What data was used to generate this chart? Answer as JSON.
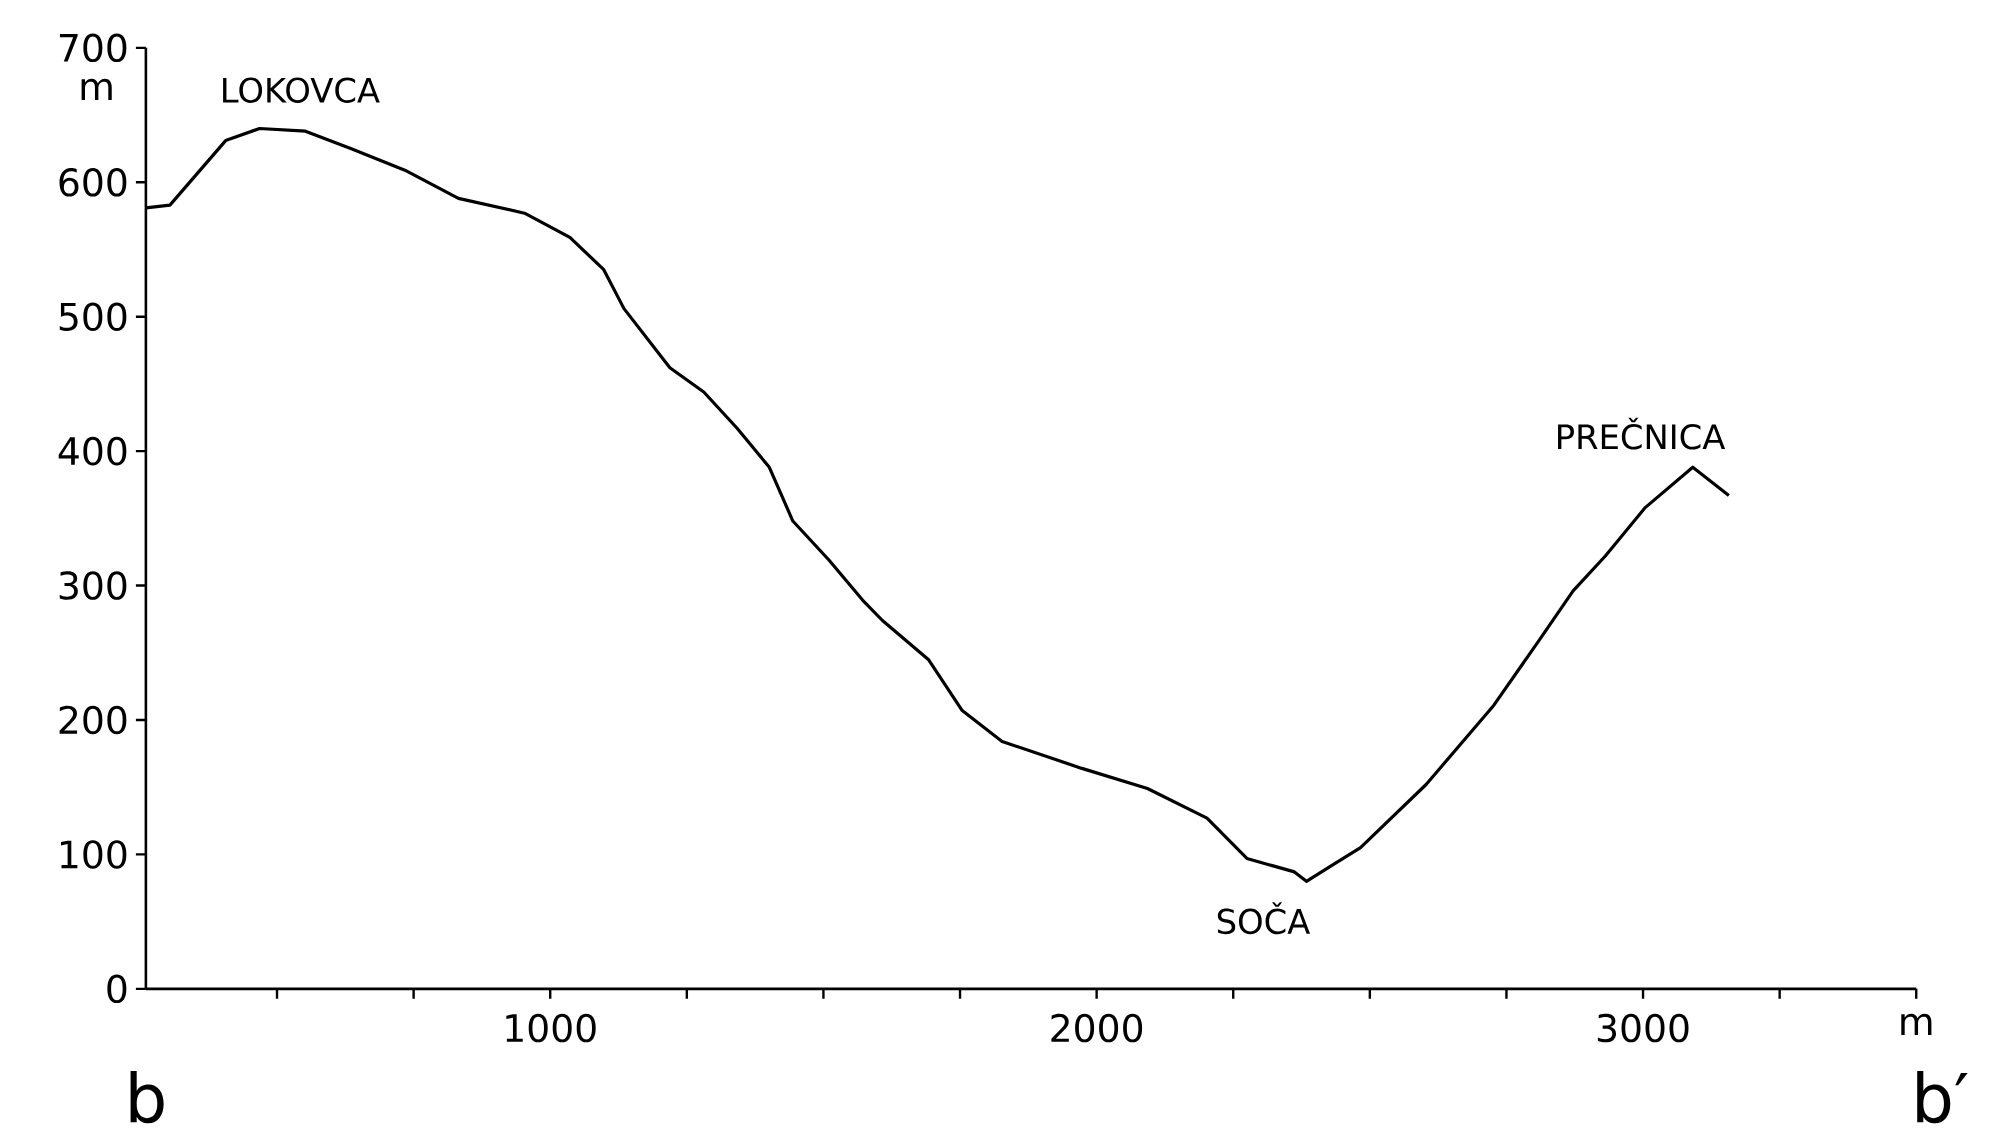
{
  "chart_data": {
    "type": "line",
    "xlabel": "m",
    "ylabel": "m",
    "xlim": [
      260,
      3500
    ],
    "ylim": [
      0,
      700
    ],
    "xticks": [
      {
        "value": 500,
        "label": null
      },
      {
        "value": 750,
        "label": null
      },
      1000,
      {
        "value": 1250,
        "label": null
      },
      {
        "value": 1500,
        "label": null
      },
      {
        "value": 1750,
        "label": null
      },
      2000,
      {
        "value": 2250,
        "label": null
      },
      {
        "value": 2500,
        "label": null
      },
      {
        "value": 2750,
        "label": null
      },
      3000,
      {
        "value": 3250,
        "label": null
      },
      {
        "value": 3500,
        "label": null
      }
    ],
    "yticks": [
      0,
      100,
      200,
      300,
      400,
      500,
      600,
      700
    ],
    "line_style": "solid",
    "marker": "none",
    "series": [
      {
        "color": "#000000",
        "x": [
          260,
          304,
          406,
          468,
          552,
          636,
          734,
          832,
          953,
          1036,
          1098,
          1135,
          1219,
          1281,
          1342,
          1401,
          1444,
          1510,
          1572,
          1608,
          1692,
          1754,
          1827,
          1973,
          2093,
          2202,
          2275,
          2362,
          2384,
          2435,
          2483,
          2603,
          2727,
          2811,
          2872,
          2931,
          3004,
          3091,
          3157
        ],
        "values": [
          581,
          583,
          631,
          640,
          638,
          625,
          609,
          588,
          577,
          559,
          535,
          506,
          462,
          444,
          417,
          388,
          348,
          319,
          289,
          274,
          245,
          207,
          184,
          164,
          149,
          127,
          97,
          87,
          80,
          93,
          105,
          152,
          211,
          260,
          296,
          322,
          358,
          388,
          367
        ]
      }
    ],
    "annotations": [
      "LOKOVCA",
      "PREČNICA",
      "SOČA",
      "b",
      "b′"
    ]
  }
}
